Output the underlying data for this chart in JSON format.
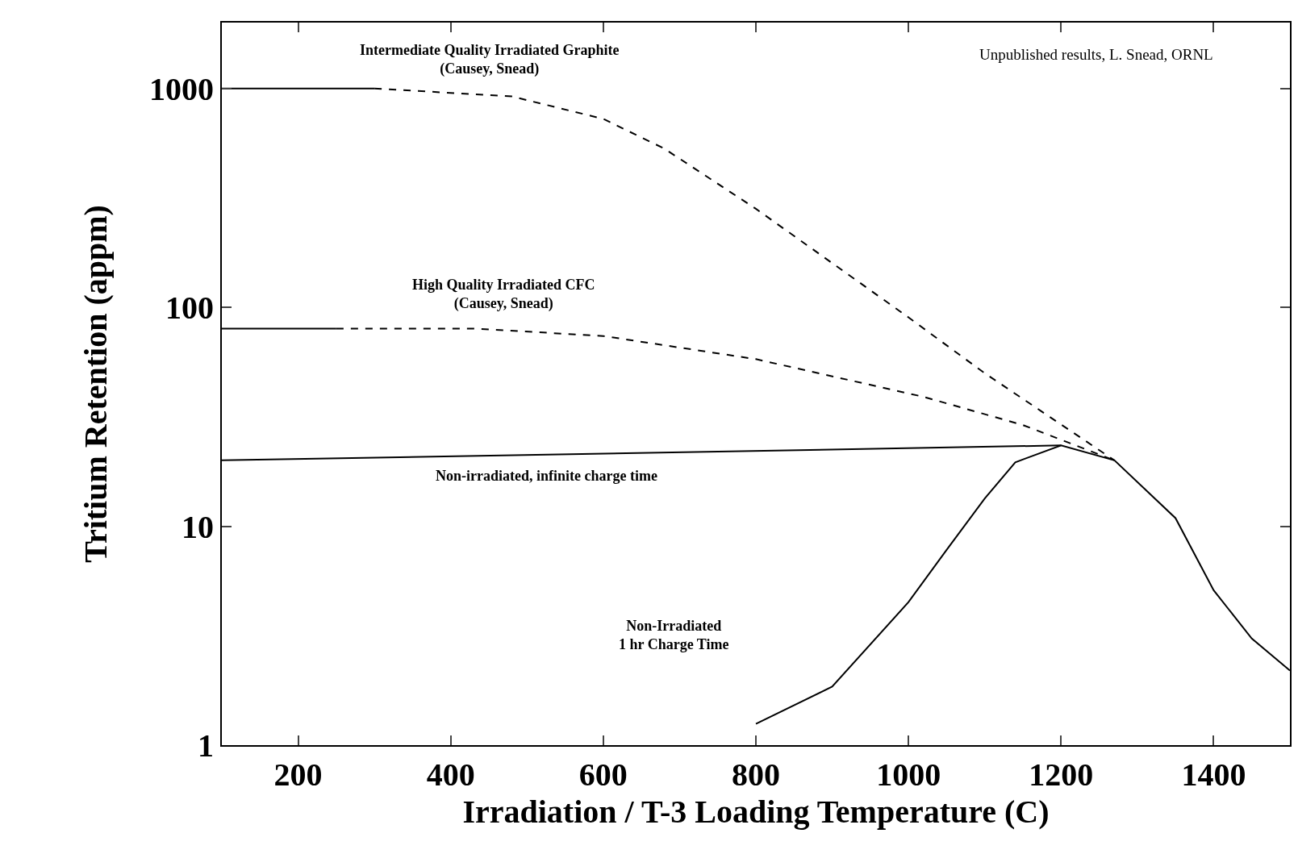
{
  "chart_data": {
    "type": "line",
    "xlabel": "Irradiation / T-3 Loading Temperature (C)",
    "ylabel": "Tritium Retention (appm)",
    "log": "y",
    "grid": false,
    "xlim": [
      100,
      1500
    ],
    "ylim": [
      1,
      2000
    ],
    "xticks": [
      200,
      400,
      600,
      800,
      1000,
      1200,
      1400
    ],
    "yticks": [
      1,
      10,
      100,
      1000
    ],
    "series": [
      {
        "color": "#000000",
        "line_style": "solid",
        "x": [
          100,
          300
        ],
        "values": [
          1000,
          1000
        ]
      },
      {
        "color": "#000000",
        "line_style": "dashed",
        "x": [
          300,
          480,
          600,
          680,
          800,
          1000,
          1100,
          1270
        ],
        "values": [
          1000,
          920,
          726,
          531,
          282,
          90,
          50,
          20
        ]
      },
      {
        "color": "#000000",
        "line_style": "solid",
        "x": [
          100,
          250
        ],
        "values": [
          80,
          80
        ]
      },
      {
        "color": "#000000",
        "line_style": "dashed",
        "x": [
          250,
          430,
          600,
          800,
          1020,
          1150,
          1270
        ],
        "values": [
          80,
          80,
          74,
          58,
          39,
          29,
          20
        ]
      },
      {
        "color": "#000000",
        "line_style": "solid",
        "x": [
          100,
          1200
        ],
        "values": [
          20,
          23.4
        ]
      },
      {
        "color": "#000000",
        "line_style": "solid",
        "x": [
          800,
          900,
          1000,
          1050,
          1100,
          1140,
          1200,
          1270,
          1350,
          1400,
          1450,
          1500
        ],
        "values": [
          1.25,
          1.85,
          4.5,
          7.8,
          13.4,
          19.6,
          23.4,
          20,
          10.9,
          5.1,
          3.07,
          2.19
        ]
      }
    ],
    "annotations": [
      "Intermediate Quality Irradiated Graphite\n(Causey, Snead)",
      "High Quality Irradiated CFC\n(Causey, Snead)",
      "Non-irradiated, infinite charge time",
      "Non-Irradiated\n1 hr Charge Time",
      "Unpublished results, L. Snead, ORNL"
    ]
  }
}
